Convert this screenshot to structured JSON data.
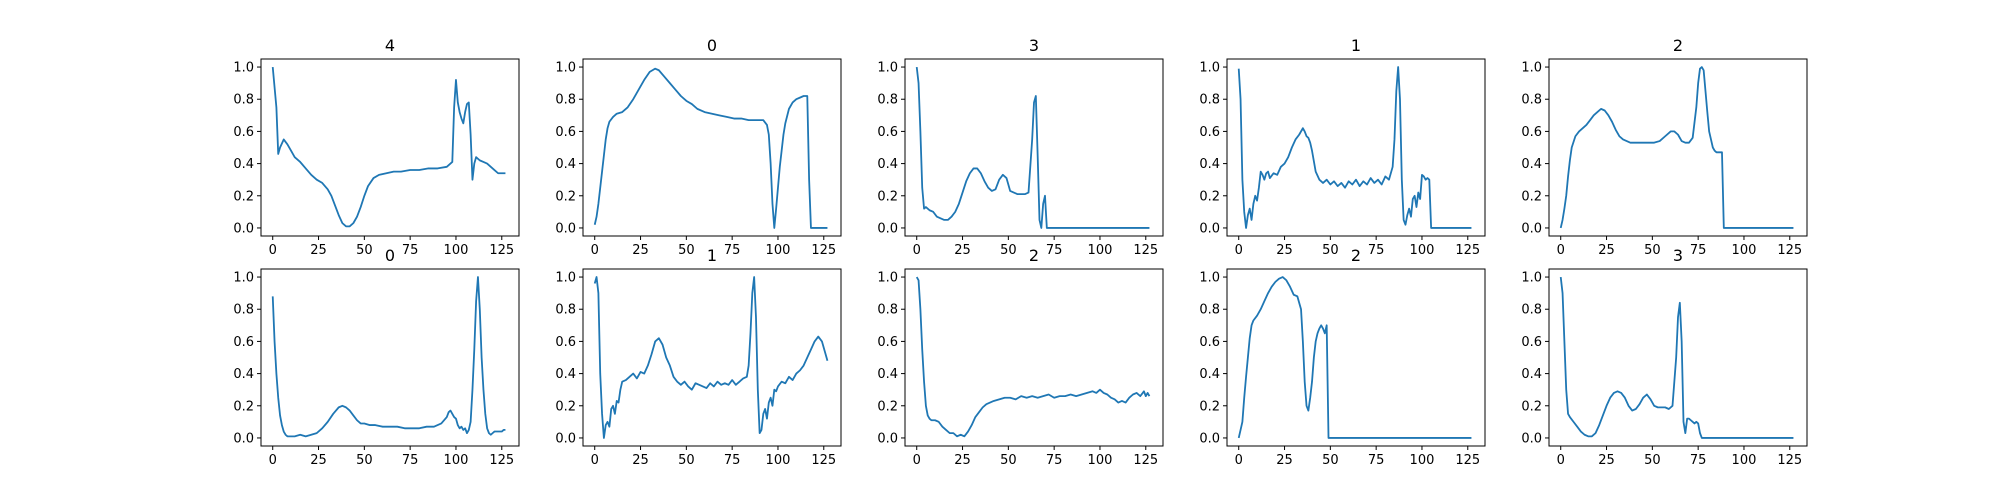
{
  "colors": {
    "line": "#1f77b4",
    "axes": "#000000",
    "background": "#ffffff"
  },
  "chart_data": [
    {
      "type": "line",
      "title": "4",
      "xlim": [
        -6.4,
        134.4
      ],
      "ylim": [
        -0.05,
        1.05
      ],
      "xticks": [
        0,
        25,
        50,
        75,
        100,
        125
      ],
      "yticks": [
        0.0,
        0.2,
        0.4,
        0.6,
        0.8,
        1.0
      ],
      "x": [
        0,
        2,
        3,
        4,
        6,
        8,
        10,
        12,
        15,
        18,
        21,
        24,
        27,
        30,
        32,
        34,
        36,
        38,
        40,
        42,
        44,
        46,
        48,
        50,
        52,
        55,
        58,
        62,
        66,
        70,
        75,
        80,
        85,
        90,
        95,
        97,
        98,
        99,
        100,
        101,
        102,
        103,
        104,
        105,
        106,
        107,
        108,
        109,
        110,
        111,
        113,
        115,
        117,
        119,
        121,
        123,
        125,
        127
      ],
      "y": [
        1.0,
        0.75,
        0.46,
        0.5,
        0.55,
        0.52,
        0.48,
        0.44,
        0.41,
        0.37,
        0.33,
        0.3,
        0.28,
        0.24,
        0.2,
        0.14,
        0.08,
        0.03,
        0.01,
        0.01,
        0.03,
        0.07,
        0.13,
        0.2,
        0.26,
        0.31,
        0.33,
        0.34,
        0.35,
        0.35,
        0.36,
        0.36,
        0.37,
        0.37,
        0.38,
        0.4,
        0.41,
        0.75,
        0.92,
        0.78,
        0.72,
        0.68,
        0.65,
        0.72,
        0.77,
        0.78,
        0.58,
        0.3,
        0.4,
        0.44,
        0.42,
        0.41,
        0.4,
        0.38,
        0.36,
        0.34,
        0.34,
        0.34
      ]
    },
    {
      "type": "line",
      "title": "0",
      "xlim": [
        -6.4,
        134.4
      ],
      "ylim": [
        -0.05,
        1.05
      ],
      "xticks": [
        0,
        25,
        50,
        75,
        100,
        125
      ],
      "yticks": [
        0.0,
        0.2,
        0.4,
        0.6,
        0.8,
        1.0
      ],
      "x": [
        0,
        1,
        2,
        3,
        4,
        5,
        6,
        7,
        8,
        10,
        12,
        15,
        18,
        21,
        24,
        27,
        30,
        33,
        35,
        38,
        41,
        44,
        47,
        50,
        53,
        56,
        60,
        64,
        68,
        72,
        76,
        80,
        84,
        88,
        90,
        92,
        94,
        95,
        96,
        97,
        98,
        99,
        100,
        101,
        102,
        103,
        104,
        106,
        108,
        110,
        112,
        114,
        115,
        116,
        117,
        118,
        127
      ],
      "y": [
        0.02,
        0.07,
        0.15,
        0.25,
        0.35,
        0.45,
        0.55,
        0.62,
        0.66,
        0.69,
        0.71,
        0.72,
        0.75,
        0.8,
        0.86,
        0.92,
        0.97,
        0.99,
        0.98,
        0.94,
        0.9,
        0.86,
        0.82,
        0.79,
        0.77,
        0.74,
        0.72,
        0.71,
        0.7,
        0.69,
        0.68,
        0.68,
        0.67,
        0.67,
        0.67,
        0.67,
        0.64,
        0.58,
        0.4,
        0.15,
        0.0,
        0.12,
        0.25,
        0.38,
        0.48,
        0.58,
        0.65,
        0.74,
        0.78,
        0.8,
        0.81,
        0.82,
        0.82,
        0.82,
        0.3,
        0.0,
        0.0
      ]
    },
    {
      "type": "line",
      "title": "3",
      "xlim": [
        -6.4,
        134.4
      ],
      "ylim": [
        -0.05,
        1.05
      ],
      "xticks": [
        0,
        25,
        50,
        75,
        100,
        125
      ],
      "yticks": [
        0.0,
        0.2,
        0.4,
        0.6,
        0.8,
        1.0
      ],
      "x": [
        0,
        1,
        2,
        3,
        4,
        5,
        7,
        9,
        11,
        13,
        15,
        17,
        19,
        21,
        23,
        25,
        27,
        29,
        31,
        33,
        35,
        37,
        39,
        41,
        43,
        45,
        47,
        49,
        51,
        53,
        55,
        57,
        59,
        61,
        63,
        64,
        65,
        66,
        67,
        68,
        69,
        70,
        71,
        72,
        127
      ],
      "y": [
        1.0,
        0.9,
        0.6,
        0.25,
        0.12,
        0.13,
        0.11,
        0.1,
        0.07,
        0.06,
        0.05,
        0.05,
        0.07,
        0.1,
        0.15,
        0.22,
        0.29,
        0.34,
        0.37,
        0.37,
        0.34,
        0.29,
        0.25,
        0.23,
        0.24,
        0.3,
        0.33,
        0.31,
        0.23,
        0.22,
        0.21,
        0.21,
        0.21,
        0.22,
        0.55,
        0.78,
        0.82,
        0.45,
        0.05,
        0.0,
        0.15,
        0.2,
        0.0,
        0.0,
        0.0
      ]
    },
    {
      "type": "line",
      "title": "1",
      "xlim": [
        -6.4,
        134.4
      ],
      "ylim": [
        -0.05,
        1.05
      ],
      "xticks": [
        0,
        25,
        50,
        75,
        100,
        125
      ],
      "yticks": [
        0.0,
        0.2,
        0.4,
        0.6,
        0.8,
        1.0
      ],
      "x": [
        0,
        1,
        2,
        3,
        4,
        5,
        6,
        7,
        8,
        9,
        10,
        11,
        12,
        13,
        14,
        15,
        16,
        17,
        19,
        21,
        23,
        25,
        27,
        29,
        31,
        33,
        35,
        36,
        37,
        38,
        39,
        40,
        42,
        44,
        46,
        48,
        50,
        52,
        54,
        56,
        58,
        60,
        62,
        64,
        66,
        68,
        70,
        72,
        74,
        76,
        78,
        80,
        82,
        84,
        85,
        86,
        87,
        88,
        89,
        90,
        91,
        92,
        93,
        94,
        95,
        96,
        97,
        98,
        99,
        100,
        101,
        102,
        103,
        104,
        105,
        106,
        127
      ],
      "y": [
        0.99,
        0.8,
        0.3,
        0.1,
        0.0,
        0.08,
        0.12,
        0.05,
        0.15,
        0.2,
        0.17,
        0.25,
        0.35,
        0.33,
        0.3,
        0.34,
        0.35,
        0.31,
        0.34,
        0.33,
        0.38,
        0.4,
        0.44,
        0.5,
        0.55,
        0.58,
        0.62,
        0.6,
        0.57,
        0.56,
        0.53,
        0.48,
        0.35,
        0.3,
        0.28,
        0.3,
        0.27,
        0.29,
        0.26,
        0.28,
        0.25,
        0.29,
        0.27,
        0.3,
        0.26,
        0.29,
        0.27,
        0.31,
        0.28,
        0.3,
        0.27,
        0.32,
        0.3,
        0.38,
        0.55,
        0.85,
        1.0,
        0.8,
        0.3,
        0.05,
        0.02,
        0.08,
        0.12,
        0.07,
        0.18,
        0.2,
        0.13,
        0.22,
        0.18,
        0.33,
        0.32,
        0.3,
        0.31,
        0.3,
        0.0,
        0.0,
        0.0
      ]
    },
    {
      "type": "line",
      "title": "2",
      "xlim": [
        -6.4,
        134.4
      ],
      "ylim": [
        -0.05,
        1.05
      ],
      "xticks": [
        0,
        25,
        50,
        75,
        100,
        125
      ],
      "yticks": [
        0.0,
        0.2,
        0.4,
        0.6,
        0.8,
        1.0
      ],
      "x": [
        0,
        1,
        2,
        3,
        4,
        5,
        6,
        8,
        10,
        12,
        14,
        16,
        18,
        20,
        22,
        24,
        26,
        28,
        30,
        32,
        34,
        36,
        38,
        40,
        42,
        45,
        48,
        51,
        54,
        57,
        60,
        62,
        64,
        66,
        68,
        70,
        72,
        74,
        75,
        76,
        77,
        78,
        79,
        80,
        81,
        82,
        83,
        84,
        85,
        86,
        87,
        88,
        89,
        127
      ],
      "y": [
        0.0,
        0.05,
        0.12,
        0.2,
        0.32,
        0.42,
        0.5,
        0.57,
        0.6,
        0.62,
        0.64,
        0.67,
        0.7,
        0.72,
        0.74,
        0.73,
        0.7,
        0.66,
        0.61,
        0.57,
        0.55,
        0.54,
        0.53,
        0.53,
        0.53,
        0.53,
        0.53,
        0.53,
        0.54,
        0.57,
        0.6,
        0.6,
        0.58,
        0.54,
        0.53,
        0.53,
        0.56,
        0.75,
        0.9,
        0.99,
        1.0,
        0.98,
        0.85,
        0.72,
        0.6,
        0.55,
        0.5,
        0.48,
        0.47,
        0.47,
        0.47,
        0.47,
        0.0,
        0.0
      ]
    },
    {
      "type": "line",
      "title": "0",
      "xlim": [
        -6.4,
        134.4
      ],
      "ylim": [
        -0.05,
        1.05
      ],
      "xticks": [
        0,
        25,
        50,
        75,
        100,
        125
      ],
      "yticks": [
        0.0,
        0.2,
        0.4,
        0.6,
        0.8,
        1.0
      ],
      "x": [
        0,
        1,
        2,
        3,
        4,
        5,
        6,
        7,
        8,
        10,
        12,
        15,
        18,
        21,
        24,
        27,
        30,
        33,
        36,
        38,
        40,
        42,
        44,
        46,
        48,
        50,
        53,
        56,
        60,
        64,
        68,
        72,
        76,
        80,
        84,
        88,
        92,
        95,
        96,
        97,
        98,
        99,
        100,
        101,
        102,
        103,
        104,
        105,
        106,
        107,
        108,
        109,
        110,
        111,
        112,
        113,
        114,
        115,
        116,
        117,
        118,
        119,
        120,
        121,
        122,
        123,
        124,
        125,
        126,
        127
      ],
      "y": [
        0.88,
        0.6,
        0.4,
        0.25,
        0.14,
        0.08,
        0.04,
        0.02,
        0.01,
        0.01,
        0.01,
        0.02,
        0.01,
        0.02,
        0.03,
        0.06,
        0.1,
        0.15,
        0.19,
        0.2,
        0.19,
        0.17,
        0.14,
        0.11,
        0.09,
        0.09,
        0.08,
        0.08,
        0.07,
        0.07,
        0.07,
        0.06,
        0.06,
        0.06,
        0.07,
        0.07,
        0.09,
        0.13,
        0.16,
        0.17,
        0.15,
        0.13,
        0.12,
        0.08,
        0.06,
        0.07,
        0.05,
        0.06,
        0.03,
        0.05,
        0.1,
        0.3,
        0.55,
        0.85,
        1.0,
        0.8,
        0.5,
        0.3,
        0.15,
        0.06,
        0.03,
        0.02,
        0.03,
        0.04,
        0.04,
        0.04,
        0.04,
        0.04,
        0.05,
        0.05
      ]
    },
    {
      "type": "line",
      "title": "1",
      "xlim": [
        -6.4,
        134.4
      ],
      "ylim": [
        -0.05,
        1.05
      ],
      "xticks": [
        0,
        25,
        50,
        75,
        100,
        125
      ],
      "yticks": [
        0.0,
        0.2,
        0.4,
        0.6,
        0.8,
        1.0
      ],
      "x": [
        0,
        1,
        2,
        3,
        4,
        5,
        6,
        7,
        8,
        9,
        10,
        11,
        12,
        13,
        14,
        15,
        17,
        19,
        21,
        23,
        25,
        27,
        29,
        31,
        33,
        35,
        37,
        39,
        41,
        43,
        45,
        47,
        49,
        51,
        53,
        55,
        57,
        59,
        61,
        63,
        65,
        67,
        69,
        71,
        73,
        75,
        77,
        79,
        81,
        83,
        84,
        85,
        86,
        87,
        88,
        89,
        90,
        91,
        92,
        93,
        94,
        95,
        96,
        97,
        98,
        99,
        100,
        102,
        104,
        106,
        108,
        110,
        112,
        114,
        116,
        118,
        120,
        122,
        124,
        126,
        127
      ],
      "y": [
        0.96,
        1.0,
        0.9,
        0.4,
        0.15,
        0.0,
        0.08,
        0.1,
        0.07,
        0.18,
        0.2,
        0.15,
        0.23,
        0.22,
        0.3,
        0.35,
        0.36,
        0.38,
        0.4,
        0.37,
        0.41,
        0.4,
        0.45,
        0.52,
        0.6,
        0.62,
        0.58,
        0.5,
        0.45,
        0.38,
        0.35,
        0.33,
        0.35,
        0.32,
        0.3,
        0.34,
        0.33,
        0.32,
        0.31,
        0.34,
        0.32,
        0.35,
        0.33,
        0.34,
        0.33,
        0.36,
        0.33,
        0.35,
        0.37,
        0.38,
        0.45,
        0.65,
        0.9,
        1.0,
        0.75,
        0.3,
        0.03,
        0.05,
        0.15,
        0.18,
        0.12,
        0.22,
        0.25,
        0.2,
        0.3,
        0.29,
        0.32,
        0.35,
        0.34,
        0.38,
        0.36,
        0.4,
        0.42,
        0.45,
        0.5,
        0.55,
        0.6,
        0.63,
        0.6,
        0.52,
        0.48
      ]
    },
    {
      "type": "line",
      "title": "2",
      "xlim": [
        -6.4,
        134.4
      ],
      "ylim": [
        -0.05,
        1.05
      ],
      "xticks": [
        0,
        25,
        50,
        75,
        100,
        125
      ],
      "yticks": [
        0.0,
        0.2,
        0.4,
        0.6,
        0.8,
        1.0
      ],
      "x": [
        0,
        1,
        2,
        3,
        4,
        5,
        6,
        7,
        8,
        10,
        12,
        14,
        16,
        18,
        20,
        22,
        24,
        26,
        28,
        30,
        32,
        34,
        36,
        38,
        40,
        42,
        45,
        48,
        51,
        54,
        57,
        60,
        63,
        66,
        69,
        72,
        75,
        78,
        81,
        84,
        87,
        90,
        93,
        96,
        98,
        100,
        102,
        104,
        106,
        108,
        110,
        112,
        114,
        116,
        118,
        120,
        122,
        124,
        125,
        126,
        127
      ],
      "y": [
        1.0,
        0.98,
        0.8,
        0.55,
        0.35,
        0.2,
        0.14,
        0.12,
        0.11,
        0.11,
        0.1,
        0.07,
        0.05,
        0.03,
        0.03,
        0.01,
        0.02,
        0.01,
        0.04,
        0.08,
        0.13,
        0.16,
        0.19,
        0.21,
        0.22,
        0.23,
        0.24,
        0.25,
        0.25,
        0.24,
        0.26,
        0.25,
        0.26,
        0.25,
        0.26,
        0.27,
        0.25,
        0.26,
        0.26,
        0.27,
        0.26,
        0.27,
        0.28,
        0.29,
        0.28,
        0.3,
        0.28,
        0.27,
        0.25,
        0.24,
        0.22,
        0.23,
        0.22,
        0.25,
        0.27,
        0.28,
        0.26,
        0.29,
        0.26,
        0.28,
        0.26
      ]
    },
    {
      "type": "line",
      "title": "2",
      "xlim": [
        -6.4,
        134.4
      ],
      "ylim": [
        -0.05,
        1.05
      ],
      "xticks": [
        0,
        25,
        50,
        75,
        100,
        125
      ],
      "yticks": [
        0.0,
        0.2,
        0.4,
        0.6,
        0.8,
        1.0
      ],
      "x": [
        0,
        1,
        2,
        3,
        4,
        5,
        6,
        7,
        8,
        10,
        12,
        14,
        16,
        18,
        20,
        22,
        24,
        26,
        28,
        30,
        32,
        34,
        35,
        36,
        37,
        38,
        39,
        40,
        41,
        42,
        43,
        44,
        45,
        46,
        47,
        48,
        49,
        127
      ],
      "y": [
        0.0,
        0.05,
        0.1,
        0.25,
        0.38,
        0.5,
        0.62,
        0.7,
        0.73,
        0.76,
        0.8,
        0.85,
        0.9,
        0.94,
        0.97,
        0.99,
        1.0,
        0.98,
        0.94,
        0.89,
        0.88,
        0.8,
        0.6,
        0.35,
        0.2,
        0.17,
        0.25,
        0.35,
        0.5,
        0.6,
        0.65,
        0.68,
        0.7,
        0.68,
        0.65,
        0.7,
        0.0,
        0.0
      ]
    },
    {
      "type": "line",
      "title": "3",
      "xlim": [
        -6.4,
        134.4
      ],
      "ylim": [
        -0.05,
        1.05
      ],
      "xticks": [
        0,
        25,
        50,
        75,
        100,
        125
      ],
      "yticks": [
        0.0,
        0.2,
        0.4,
        0.6,
        0.8,
        1.0
      ],
      "x": [
        0,
        1,
        2,
        3,
        4,
        5,
        7,
        9,
        11,
        13,
        15,
        17,
        19,
        21,
        23,
        25,
        27,
        29,
        31,
        33,
        35,
        37,
        39,
        41,
        43,
        45,
        47,
        49,
        51,
        53,
        55,
        57,
        59,
        61,
        63,
        64,
        65,
        66,
        67,
        68,
        69,
        70,
        71,
        72,
        73,
        74,
        75,
        76,
        77,
        78,
        127
      ],
      "y": [
        1.0,
        0.9,
        0.6,
        0.3,
        0.15,
        0.13,
        0.1,
        0.07,
        0.04,
        0.02,
        0.01,
        0.01,
        0.03,
        0.08,
        0.14,
        0.2,
        0.25,
        0.28,
        0.29,
        0.28,
        0.25,
        0.2,
        0.17,
        0.18,
        0.21,
        0.25,
        0.27,
        0.24,
        0.2,
        0.19,
        0.19,
        0.19,
        0.18,
        0.2,
        0.5,
        0.75,
        0.84,
        0.6,
        0.1,
        0.03,
        0.12,
        0.12,
        0.11,
        0.1,
        0.09,
        0.1,
        0.09,
        0.03,
        0.0,
        0.0,
        0.0
      ]
    }
  ]
}
